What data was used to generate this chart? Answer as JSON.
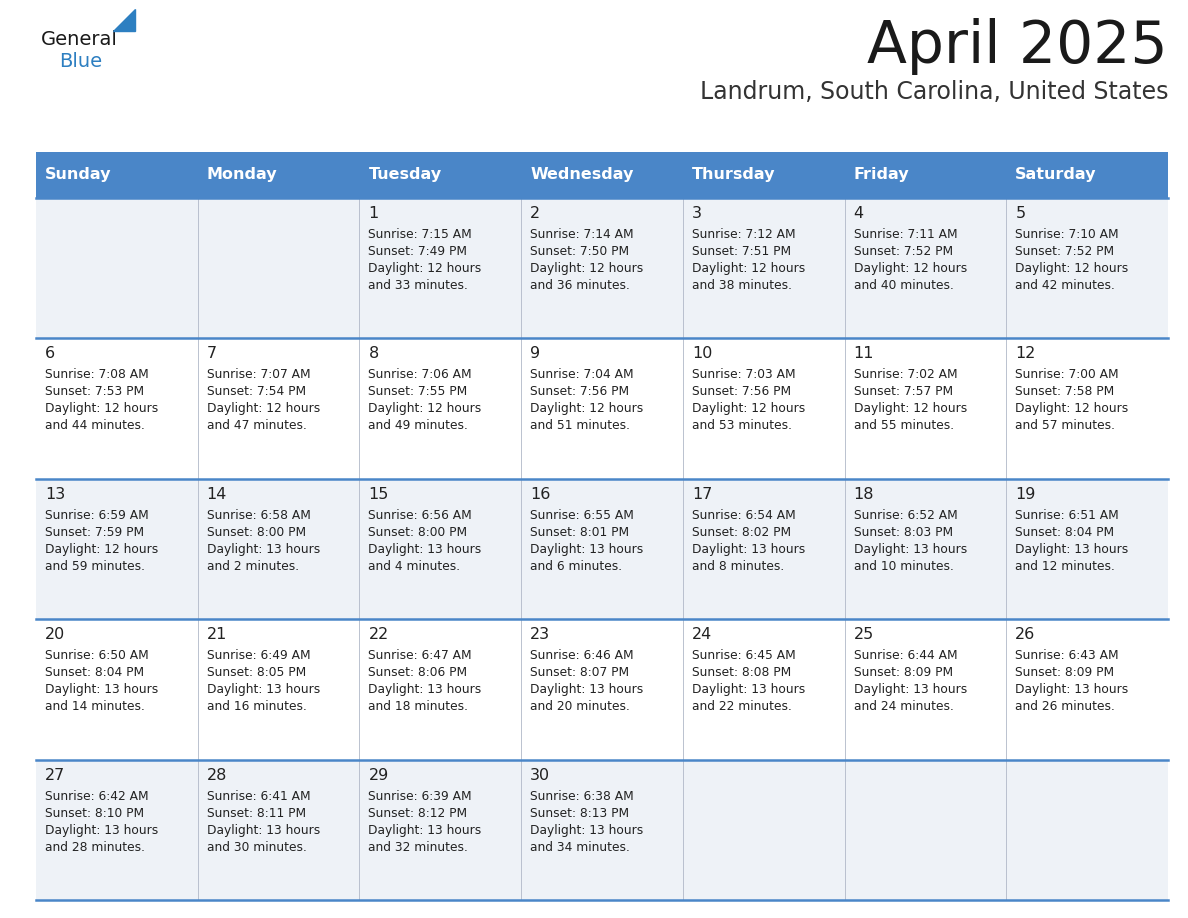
{
  "title": "April 2025",
  "subtitle": "Landrum, South Carolina, United States",
  "days_of_week": [
    "Sunday",
    "Monday",
    "Tuesday",
    "Wednesday",
    "Thursday",
    "Friday",
    "Saturday"
  ],
  "header_bg": "#4a86c8",
  "header_text": "#ffffff",
  "row_bg_odd": "#eef2f7",
  "row_bg_even": "#ffffff",
  "divider_color": "#4a86c8",
  "text_color": "#222222",
  "title_color": "#1a1a1a",
  "subtitle_color": "#333333",
  "logo_general_color": "#1a1a1a",
  "logo_blue_color": "#2d7fc1",
  "weeks": [
    {
      "days": [
        {
          "date": "",
          "sunrise": "",
          "sunset": "",
          "daylight": ""
        },
        {
          "date": "",
          "sunrise": "",
          "sunset": "",
          "daylight": ""
        },
        {
          "date": "1",
          "sunrise": "7:15 AM",
          "sunset": "7:49 PM",
          "daylight": "12 hours\nand 33 minutes."
        },
        {
          "date": "2",
          "sunrise": "7:14 AM",
          "sunset": "7:50 PM",
          "daylight": "12 hours\nand 36 minutes."
        },
        {
          "date": "3",
          "sunrise": "7:12 AM",
          "sunset": "7:51 PM",
          "daylight": "12 hours\nand 38 minutes."
        },
        {
          "date": "4",
          "sunrise": "7:11 AM",
          "sunset": "7:52 PM",
          "daylight": "12 hours\nand 40 minutes."
        },
        {
          "date": "5",
          "sunrise": "7:10 AM",
          "sunset": "7:52 PM",
          "daylight": "12 hours\nand 42 minutes."
        }
      ]
    },
    {
      "days": [
        {
          "date": "6",
          "sunrise": "7:08 AM",
          "sunset": "7:53 PM",
          "daylight": "12 hours\nand 44 minutes."
        },
        {
          "date": "7",
          "sunrise": "7:07 AM",
          "sunset": "7:54 PM",
          "daylight": "12 hours\nand 47 minutes."
        },
        {
          "date": "8",
          "sunrise": "7:06 AM",
          "sunset": "7:55 PM",
          "daylight": "12 hours\nand 49 minutes."
        },
        {
          "date": "9",
          "sunrise": "7:04 AM",
          "sunset": "7:56 PM",
          "daylight": "12 hours\nand 51 minutes."
        },
        {
          "date": "10",
          "sunrise": "7:03 AM",
          "sunset": "7:56 PM",
          "daylight": "12 hours\nand 53 minutes."
        },
        {
          "date": "11",
          "sunrise": "7:02 AM",
          "sunset": "7:57 PM",
          "daylight": "12 hours\nand 55 minutes."
        },
        {
          "date": "12",
          "sunrise": "7:00 AM",
          "sunset": "7:58 PM",
          "daylight": "12 hours\nand 57 minutes."
        }
      ]
    },
    {
      "days": [
        {
          "date": "13",
          "sunrise": "6:59 AM",
          "sunset": "7:59 PM",
          "daylight": "12 hours\nand 59 minutes."
        },
        {
          "date": "14",
          "sunrise": "6:58 AM",
          "sunset": "8:00 PM",
          "daylight": "13 hours\nand 2 minutes."
        },
        {
          "date": "15",
          "sunrise": "6:56 AM",
          "sunset": "8:00 PM",
          "daylight": "13 hours\nand 4 minutes."
        },
        {
          "date": "16",
          "sunrise": "6:55 AM",
          "sunset": "8:01 PM",
          "daylight": "13 hours\nand 6 minutes."
        },
        {
          "date": "17",
          "sunrise": "6:54 AM",
          "sunset": "8:02 PM",
          "daylight": "13 hours\nand 8 minutes."
        },
        {
          "date": "18",
          "sunrise": "6:52 AM",
          "sunset": "8:03 PM",
          "daylight": "13 hours\nand 10 minutes."
        },
        {
          "date": "19",
          "sunrise": "6:51 AM",
          "sunset": "8:04 PM",
          "daylight": "13 hours\nand 12 minutes."
        }
      ]
    },
    {
      "days": [
        {
          "date": "20",
          "sunrise": "6:50 AM",
          "sunset": "8:04 PM",
          "daylight": "13 hours\nand 14 minutes."
        },
        {
          "date": "21",
          "sunrise": "6:49 AM",
          "sunset": "8:05 PM",
          "daylight": "13 hours\nand 16 minutes."
        },
        {
          "date": "22",
          "sunrise": "6:47 AM",
          "sunset": "8:06 PM",
          "daylight": "13 hours\nand 18 minutes."
        },
        {
          "date": "23",
          "sunrise": "6:46 AM",
          "sunset": "8:07 PM",
          "daylight": "13 hours\nand 20 minutes."
        },
        {
          "date": "24",
          "sunrise": "6:45 AM",
          "sunset": "8:08 PM",
          "daylight": "13 hours\nand 22 minutes."
        },
        {
          "date": "25",
          "sunrise": "6:44 AM",
          "sunset": "8:09 PM",
          "daylight": "13 hours\nand 24 minutes."
        },
        {
          "date": "26",
          "sunrise": "6:43 AM",
          "sunset": "8:09 PM",
          "daylight": "13 hours\nand 26 minutes."
        }
      ]
    },
    {
      "days": [
        {
          "date": "27",
          "sunrise": "6:42 AM",
          "sunset": "8:10 PM",
          "daylight": "13 hours\nand 28 minutes."
        },
        {
          "date": "28",
          "sunrise": "6:41 AM",
          "sunset": "8:11 PM",
          "daylight": "13 hours\nand 30 minutes."
        },
        {
          "date": "29",
          "sunrise": "6:39 AM",
          "sunset": "8:12 PM",
          "daylight": "13 hours\nand 32 minutes."
        },
        {
          "date": "30",
          "sunrise": "6:38 AM",
          "sunset": "8:13 PM",
          "daylight": "13 hours\nand 34 minutes."
        },
        {
          "date": "",
          "sunrise": "",
          "sunset": "",
          "daylight": ""
        },
        {
          "date": "",
          "sunrise": "",
          "sunset": "",
          "daylight": ""
        },
        {
          "date": "",
          "sunrise": "",
          "sunset": "",
          "daylight": ""
        }
      ]
    }
  ],
  "fig_width": 11.88,
  "fig_height": 9.18,
  "dpi": 100
}
